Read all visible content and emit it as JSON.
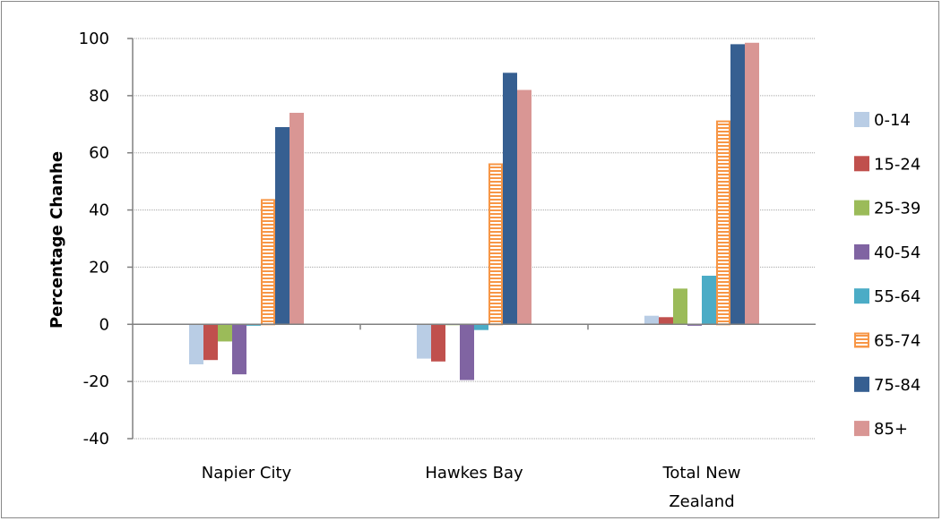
{
  "chart_data": {
    "type": "bar",
    "title": "",
    "xlabel": "",
    "ylabel": "Percentage Chanhe",
    "ylim": [
      -40,
      100
    ],
    "yticks": [
      -40,
      -20,
      0,
      20,
      40,
      60,
      80,
      100
    ],
    "grid": true,
    "legend_position": "right",
    "categories": [
      "Napier City",
      "Hawkes Bay",
      "Total New Zealand"
    ],
    "category_lines": [
      [
        "Napier City"
      ],
      [
        "Hawkes Bay"
      ],
      [
        "Total New",
        "Zealand"
      ]
    ],
    "series": [
      {
        "name": "0-14",
        "color": "#b9cde5",
        "pattern": "solid",
        "values": [
          -14,
          -12,
          3
        ]
      },
      {
        "name": "15-24",
        "color": "#c0504d",
        "pattern": "solid",
        "values": [
          -12.5,
          -13,
          2.5
        ]
      },
      {
        "name": "25-39",
        "color": "#9bbb59",
        "pattern": "solid",
        "values": [
          -6,
          0,
          12.5
        ]
      },
      {
        "name": "40-54",
        "color": "#8064a2",
        "pattern": "solid",
        "values": [
          -17.5,
          -19.5,
          -0.5
        ]
      },
      {
        "name": "55-64",
        "color": "#4bacc6",
        "pattern": "solid",
        "values": [
          -0.5,
          -2,
          17
        ]
      },
      {
        "name": "65-74",
        "color": "#f79646",
        "pattern": "striped",
        "values": [
          43.5,
          56,
          71
        ]
      },
      {
        "name": "75-84",
        "color": "#365f91",
        "pattern": "solid",
        "values": [
          69,
          88,
          98
        ]
      },
      {
        "name": "85+",
        "color": "#d99694",
        "pattern": "solid",
        "values": [
          74,
          82,
          98.5
        ]
      }
    ]
  }
}
